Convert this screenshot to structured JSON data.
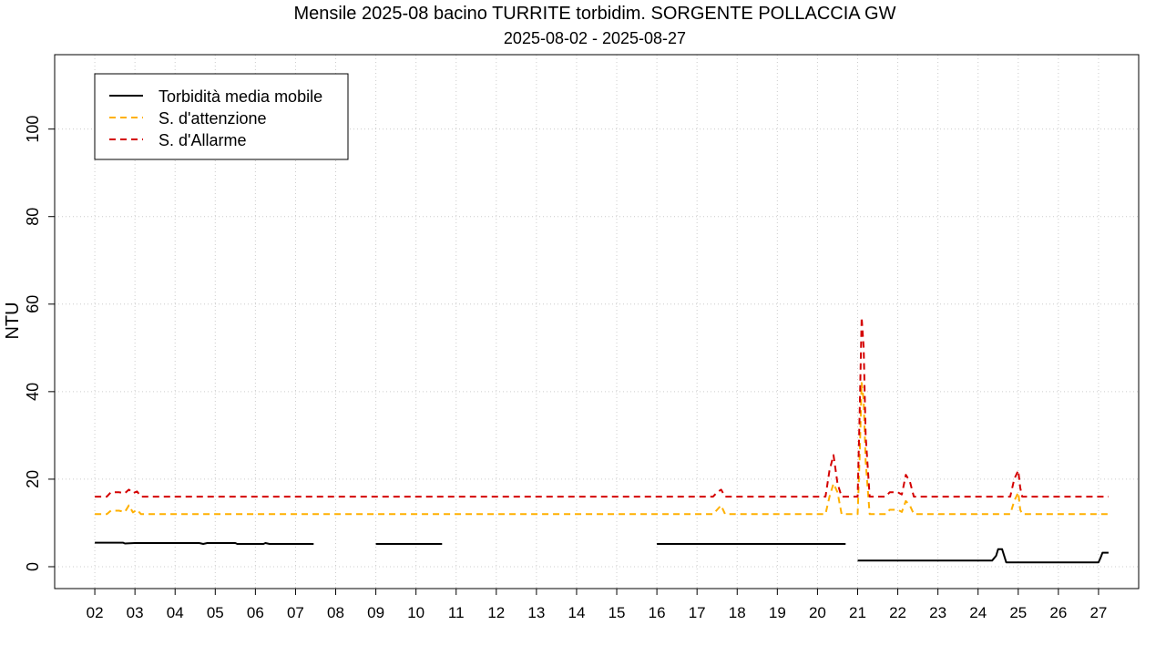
{
  "chart_data": {
    "type": "line",
    "title": "Mensile 2025-08 bacino TURRITE torbidim. SORGENTE POLLACCIA GW",
    "subtitle": "2025-08-02 - 2025-08-27",
    "xlabel": "",
    "ylabel": "NTU",
    "xlim": [
      1.0,
      28.0
    ],
    "ylim": [
      -5,
      117
    ],
    "x_ticks": [
      2,
      3,
      4,
      5,
      6,
      7,
      8,
      9,
      10,
      11,
      12,
      13,
      14,
      15,
      16,
      17,
      18,
      19,
      20,
      21,
      22,
      23,
      24,
      25,
      26,
      27
    ],
    "x_tick_labels": [
      "02",
      "03",
      "04",
      "05",
      "06",
      "07",
      "08",
      "09",
      "10",
      "11",
      "12",
      "13",
      "14",
      "15",
      "16",
      "17",
      "18",
      "19",
      "20",
      "21",
      "22",
      "23",
      "24",
      "25",
      "26",
      "27"
    ],
    "y_ticks": [
      0,
      20,
      40,
      60,
      80,
      100
    ],
    "y_tick_labels": [
      "0",
      "20",
      "40",
      "60",
      "80",
      "100"
    ],
    "grid": true,
    "legend_position": "top-left",
    "colors": {
      "mean": "#000000",
      "attention": "#FFB000",
      "alarm": "#D40000",
      "grid": "#cccccc"
    },
    "series": [
      {
        "name": "Torbidità media mobile",
        "style": "solid",
        "color": "#000000",
        "segments": [
          [
            [
              2.0,
              5.5
            ],
            [
              2.7,
              5.5
            ],
            [
              2.75,
              5.3
            ],
            [
              3.0,
              5.4
            ],
            [
              4.6,
              5.4
            ],
            [
              4.7,
              5.2
            ],
            [
              4.8,
              5.4
            ],
            [
              5.5,
              5.4
            ],
            [
              5.55,
              5.2
            ],
            [
              6.2,
              5.2
            ],
            [
              6.25,
              5.4
            ],
            [
              6.35,
              5.2
            ],
            [
              7.45,
              5.2
            ]
          ],
          [
            [
              9.0,
              5.2
            ],
            [
              10.65,
              5.2
            ]
          ],
          [
            [
              16.0,
              5.2
            ],
            [
              20.7,
              5.2
            ]
          ],
          [
            [
              21.0,
              1.4
            ],
            [
              23.0,
              1.4
            ],
            [
              24.35,
              1.4
            ],
            [
              24.45,
              2.5
            ],
            [
              24.5,
              4.0
            ],
            [
              24.6,
              4.0
            ],
            [
              24.7,
              1.0
            ],
            [
              26.5,
              1.0
            ],
            [
              27.0,
              1.0
            ],
            [
              27.05,
              2.0
            ],
            [
              27.1,
              3.2
            ],
            [
              27.25,
              3.2
            ]
          ]
        ]
      },
      {
        "name": "S. d'attenzione",
        "style": "dashed",
        "color": "#FFB000",
        "segments": [
          [
            [
              2.0,
              12
            ],
            [
              2.3,
              12
            ],
            [
              2.4,
              12.8
            ],
            [
              2.6,
              12.8
            ],
            [
              2.75,
              12.5
            ],
            [
              2.85,
              14
            ],
            [
              2.95,
              12.4
            ],
            [
              3.05,
              13
            ],
            [
              3.15,
              12
            ],
            [
              17.4,
              12
            ],
            [
              17.5,
              13
            ],
            [
              17.6,
              14
            ],
            [
              17.7,
              12
            ],
            [
              20.2,
              12
            ],
            [
              20.3,
              16
            ],
            [
              20.4,
              19
            ],
            [
              20.5,
              17
            ],
            [
              20.6,
              12
            ],
            [
              21.0,
              12
            ],
            [
              21.05,
              25
            ],
            [
              21.1,
              42
            ],
            [
              21.15,
              38
            ],
            [
              21.2,
              24
            ],
            [
              21.3,
              12
            ],
            [
              21.7,
              12
            ],
            [
              21.8,
              13
            ],
            [
              22.0,
              13
            ],
            [
              22.1,
              12.5
            ],
            [
              22.2,
              15
            ],
            [
              22.3,
              14
            ],
            [
              22.4,
              12
            ],
            [
              24.8,
              12
            ],
            [
              24.9,
              15
            ],
            [
              25.0,
              17
            ],
            [
              25.05,
              13
            ],
            [
              25.1,
              12
            ],
            [
              27.25,
              12
            ]
          ]
        ]
      },
      {
        "name": "S. d'Allarme",
        "style": "dashed",
        "color": "#D40000",
        "segments": [
          [
            [
              2.0,
              16
            ],
            [
              2.3,
              16
            ],
            [
              2.4,
              17
            ],
            [
              2.6,
              17
            ],
            [
              2.75,
              16.8
            ],
            [
              2.85,
              17.6
            ],
            [
              2.95,
              16.8
            ],
            [
              3.05,
              17.2
            ],
            [
              3.15,
              16
            ],
            [
              17.4,
              16
            ],
            [
              17.5,
              17
            ],
            [
              17.6,
              17.6
            ],
            [
              17.7,
              16
            ],
            [
              20.2,
              16
            ],
            [
              20.3,
              22
            ],
            [
              20.4,
              25.5
            ],
            [
              20.5,
              19
            ],
            [
              20.6,
              16
            ],
            [
              21.0,
              16
            ],
            [
              21.05,
              35
            ],
            [
              21.1,
              57
            ],
            [
              21.15,
              50
            ],
            [
              21.2,
              30
            ],
            [
              21.3,
              16
            ],
            [
              21.7,
              16
            ],
            [
              21.8,
              17
            ],
            [
              22.0,
              17
            ],
            [
              22.1,
              16.5
            ],
            [
              22.2,
              21
            ],
            [
              22.3,
              19.5
            ],
            [
              22.4,
              16
            ],
            [
              24.8,
              16
            ],
            [
              24.9,
              20
            ],
            [
              25.0,
              22
            ],
            [
              25.05,
              18
            ],
            [
              25.1,
              16
            ],
            [
              27.25,
              16
            ]
          ]
        ]
      }
    ]
  }
}
